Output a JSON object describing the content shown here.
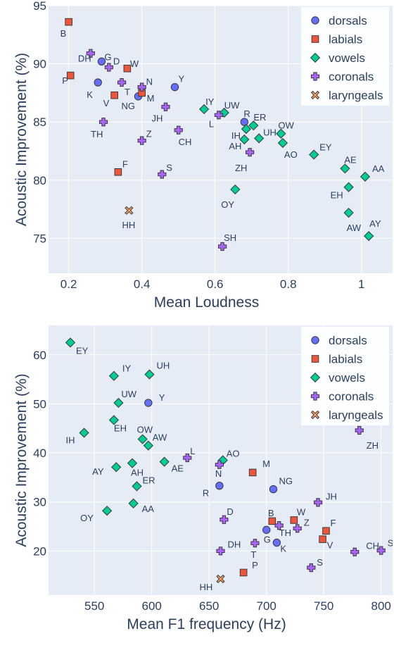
{
  "colors": {
    "plot_bg": "#e5ecf6",
    "grid": "#ffffff",
    "dorsals": "#636efa",
    "labials": "#ef553b",
    "vowels": "#00cc96",
    "coronals": "#ab63fa",
    "laryngeals": "#ffa15a"
  },
  "legend": [
    {
      "key": "dorsals",
      "label": "dorsals",
      "symbol": "circle"
    },
    {
      "key": "labials",
      "label": "labials",
      "symbol": "square"
    },
    {
      "key": "vowels",
      "label": "vowels",
      "symbol": "diamond"
    },
    {
      "key": "coronals",
      "label": "coronals",
      "symbol": "cross"
    },
    {
      "key": "laryngeals",
      "label": "laryngeals",
      "symbol": "x"
    }
  ],
  "chart_data": [
    {
      "type": "scatter",
      "xlabel": "Mean Loudness",
      "ylabel": "Acoustic Improvement (%)",
      "xlim": [
        0.145,
        1.085
      ],
      "ylim": [
        72.0,
        95.0
      ],
      "xticks": [
        0.2,
        0.4,
        0.6,
        0.8,
        1.0
      ],
      "xtick_labels": [
        "0.2",
        "0.4",
        "0.6",
        "0.8",
        "1"
      ],
      "yticks": [
        75,
        80,
        85,
        90,
        95
      ],
      "grid": true,
      "legend_position": "top-right",
      "series": [
        {
          "name": "dorsals",
          "points": [
            {
              "label": "G",
              "x": 0.29,
              "y": 90.2
            },
            {
              "label": "K",
              "x": 0.28,
              "y": 88.4
            },
            {
              "label": "NG",
              "x": 0.39,
              "y": 87.2
            },
            {
              "label": "Y",
              "x": 0.49,
              "y": 88.0
            },
            {
              "label": "R",
              "x": 0.68,
              "y": 85.0
            }
          ]
        },
        {
          "name": "labials",
          "points": [
            {
              "label": "B",
              "x": 0.2,
              "y": 93.6
            },
            {
              "label": "P",
              "x": 0.205,
              "y": 89.0
            },
            {
              "label": "W",
              "x": 0.36,
              "y": 89.6
            },
            {
              "label": "V",
              "x": 0.325,
              "y": 87.3
            },
            {
              "label": "M",
              "x": 0.4,
              "y": 87.5
            },
            {
              "label": "F",
              "x": 0.335,
              "y": 80.7
            }
          ]
        },
        {
          "name": "vowels",
          "points": [
            {
              "label": "IY",
              "x": 0.57,
              "y": 86.1
            },
            {
              "label": "UW",
              "x": 0.625,
              "y": 85.8
            },
            {
              "label": "IH",
              "x": 0.685,
              "y": 84.4
            },
            {
              "label": "ER",
              "x": 0.705,
              "y": 84.7
            },
            {
              "label": "AH",
              "x": 0.68,
              "y": 83.5
            },
            {
              "label": "UH",
              "x": 0.72,
              "y": 83.6
            },
            {
              "label": "OW",
              "x": 0.78,
              "y": 84.0
            },
            {
              "label": "AO",
              "x": 0.785,
              "y": 83.2
            },
            {
              "label": "EY",
              "x": 0.87,
              "y": 82.2
            },
            {
              "label": "AE",
              "x": 0.955,
              "y": 81.0
            },
            {
              "label": "AA",
              "x": 1.01,
              "y": 80.3
            },
            {
              "label": "EH",
              "x": 0.965,
              "y": 79.4
            },
            {
              "label": "AW",
              "x": 0.965,
              "y": 77.2
            },
            {
              "label": "AY",
              "x": 1.02,
              "y": 75.2
            },
            {
              "label": "OY",
              "x": 0.655,
              "y": 79.2
            }
          ]
        },
        {
          "name": "coronals",
          "points": [
            {
              "label": "DH",
              "x": 0.26,
              "y": 90.9
            },
            {
              "label": "D",
              "x": 0.31,
              "y": 89.7
            },
            {
              "label": "T",
              "x": 0.345,
              "y": 88.4
            },
            {
              "label": "N",
              "x": 0.4,
              "y": 88.0
            },
            {
              "label": "JH",
              "x": 0.465,
              "y": 86.3
            },
            {
              "label": "TH",
              "x": 0.295,
              "y": 85.0
            },
            {
              "label": "Z",
              "x": 0.4,
              "y": 83.4
            },
            {
              "label": "CH",
              "x": 0.5,
              "y": 84.3
            },
            {
              "label": "L",
              "x": 0.61,
              "y": 85.6
            },
            {
              "label": "ZH",
              "x": 0.695,
              "y": 82.4
            },
            {
              "label": "S",
              "x": 0.455,
              "y": 80.5
            },
            {
              "label": "SH",
              "x": 0.62,
              "y": 74.3
            }
          ]
        },
        {
          "name": "laryngeals",
          "points": [
            {
              "label": "HH",
              "x": 0.365,
              "y": 77.4
            }
          ]
        }
      ]
    },
    {
      "type": "scatter",
      "xlabel": "Mean F1 frequency (Hz)",
      "ylabel": "Acoustic Improvement (%)",
      "xlim": [
        510,
        810
      ],
      "ylim": [
        11.0,
        66.0
      ],
      "xticks": [
        550,
        600,
        650,
        700,
        750,
        800
      ],
      "xtick_labels": [
        "550",
        "600",
        "650",
        "700",
        "750",
        "800"
      ],
      "yticks": [
        20,
        30,
        40,
        50,
        60
      ],
      "grid": true,
      "legend_position": "top-right",
      "series": [
        {
          "name": "dorsals",
          "points": [
            {
              "label": "Y",
              "x": 597,
              "y": 50.2
            },
            {
              "label": "R",
              "x": 659,
              "y": 33.3
            },
            {
              "label": "NG",
              "x": 706,
              "y": 32.6
            },
            {
              "label": "G",
              "x": 700,
              "y": 24.3
            },
            {
              "label": "K",
              "x": 709,
              "y": 21.7
            }
          ]
        },
        {
          "name": "labials",
          "points": [
            {
              "label": "M",
              "x": 688,
              "y": 36.0
            },
            {
              "label": "B",
              "x": 705,
              "y": 26.1
            },
            {
              "label": "W",
              "x": 724,
              "y": 26.3
            },
            {
              "label": "F",
              "x": 752,
              "y": 24.1
            },
            {
              "label": "V",
              "x": 749,
              "y": 22.4
            },
            {
              "label": "P",
              "x": 680,
              "y": 15.6
            }
          ]
        },
        {
          "name": "vowels",
          "points": [
            {
              "label": "EY",
              "x": 529,
              "y": 62.5
            },
            {
              "label": "IY",
              "x": 567,
              "y": 55.7
            },
            {
              "label": "UH",
              "x": 598,
              "y": 56.0
            },
            {
              "label": "UW",
              "x": 571,
              "y": 50.2
            },
            {
              "label": "EH",
              "x": 567,
              "y": 46.7
            },
            {
              "label": "IH",
              "x": 541,
              "y": 44.1
            },
            {
              "label": "OW",
              "x": 592,
              "y": 42.8
            },
            {
              "label": "AW",
              "x": 597,
              "y": 41.5
            },
            {
              "label": "AH",
              "x": 583,
              "y": 37.9
            },
            {
              "label": "AY",
              "x": 569,
              "y": 37.1
            },
            {
              "label": "AE",
              "x": 611,
              "y": 38.2
            },
            {
              "label": "AO",
              "x": 662,
              "y": 38.5
            },
            {
              "label": "ER",
              "x": 587,
              "y": 33.2
            },
            {
              "label": "AA",
              "x": 584,
              "y": 29.7
            },
            {
              "label": "OY",
              "x": 561,
              "y": 28.2
            }
          ]
        },
        {
          "name": "coronals",
          "points": [
            {
              "label": "L",
              "x": 631,
              "y": 39.0
            },
            {
              "label": "N",
              "x": 659,
              "y": 37.6
            },
            {
              "label": "JH",
              "x": 745,
              "y": 29.9
            },
            {
              "label": "D",
              "x": 663,
              "y": 26.4
            },
            {
              "label": "Z",
              "x": 727,
              "y": 24.6
            },
            {
              "label": "TH",
              "x": 711,
              "y": 25.2
            },
            {
              "label": "DH",
              "x": 660,
              "y": 20.0
            },
            {
              "label": "T",
              "x": 690,
              "y": 21.6
            },
            {
              "label": "S",
              "x": 739,
              "y": 16.6
            },
            {
              "label": "CH",
              "x": 777,
              "y": 19.8
            },
            {
              "label": "SH",
              "x": 800,
              "y": 20.1
            },
            {
              "label": "ZH",
              "x": 781,
              "y": 44.6
            }
          ]
        },
        {
          "name": "laryngeals",
          "points": [
            {
              "label": "HH",
              "x": 660,
              "y": 14.3
            }
          ]
        }
      ]
    }
  ]
}
